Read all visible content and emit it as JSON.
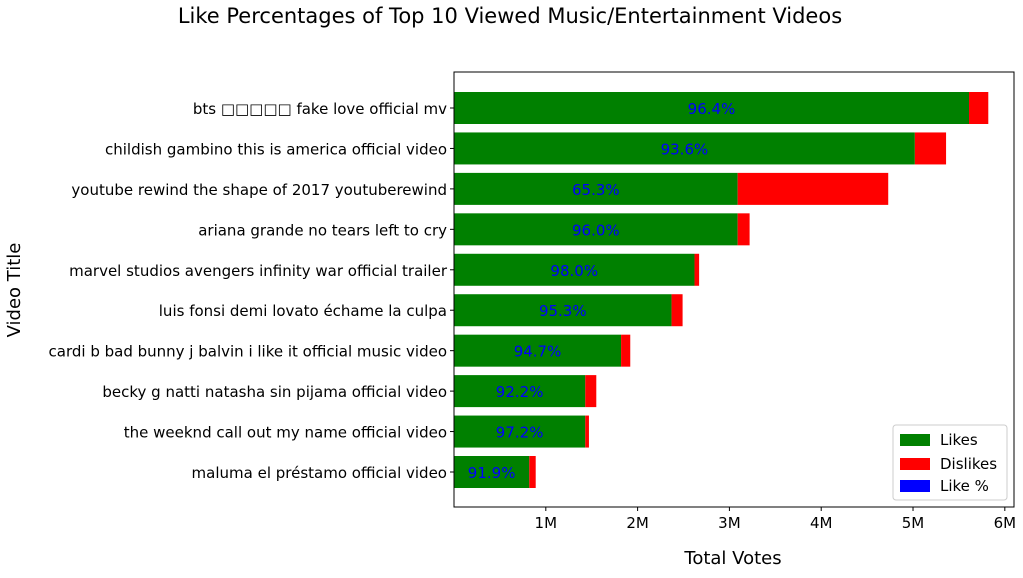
{
  "chart_data": {
    "type": "bar",
    "orientation": "horizontal",
    "stacked": true,
    "title": "Like Percentages of Top 10 Viewed Music/Entertainment Videos",
    "xlabel": "Total Votes",
    "ylabel": "Video Title",
    "xlim": [
      0,
      6100000
    ],
    "xticks": [
      1000000,
      2000000,
      3000000,
      4000000,
      5000000,
      6000000
    ],
    "xtick_labels": [
      "1M",
      "2M",
      "3M",
      "4M",
      "5M",
      "6M"
    ],
    "grid": false,
    "legend_position": "bottom-right",
    "categories": [
      "bts □□□□□ fake love official mv",
      "childish gambino this is america official video",
      "youtube rewind the shape of 2017 youtuberewind",
      "ariana grande no tears left to cry",
      "marvel studios avengers infinity war official trailer",
      "luis fonsi demi lovato échame la culpa",
      "cardi b bad bunny j balvin i like it official music video",
      "becky g natti natasha sin pijama official video",
      "the weeknd call out my name official video",
      "maluma el préstamo official video"
    ],
    "series": [
      {
        "name": "Likes",
        "color": "#008000",
        "values": [
          5610000,
          5020000,
          3090000,
          3090000,
          2620000,
          2370000,
          1820000,
          1430000,
          1430000,
          820000
        ]
      },
      {
        "name": "Dislikes",
        "color": "#ff0000",
        "values": [
          210000,
          340000,
          1640000,
          130000,
          50000,
          120000,
          100000,
          120000,
          40000,
          70000
        ]
      }
    ],
    "like_percent": {
      "name": "Like %",
      "color": "#0000ff",
      "labels": [
        "96.4%",
        "93.6%",
        "65.3%",
        "96.0%",
        "98.0%",
        "95.3%",
        "94.7%",
        "92.2%",
        "97.2%",
        "91.9%"
      ]
    }
  }
}
